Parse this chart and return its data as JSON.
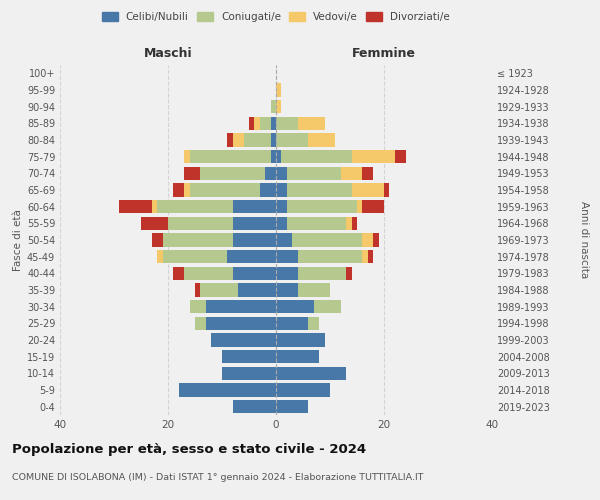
{
  "age_groups": [
    "0-4",
    "5-9",
    "10-14",
    "15-19",
    "20-24",
    "25-29",
    "30-34",
    "35-39",
    "40-44",
    "45-49",
    "50-54",
    "55-59",
    "60-64",
    "65-69",
    "70-74",
    "75-79",
    "80-84",
    "85-89",
    "90-94",
    "95-99",
    "100+"
  ],
  "birth_years": [
    "2019-2023",
    "2014-2018",
    "2009-2013",
    "2004-2008",
    "1999-2003",
    "1994-1998",
    "1989-1993",
    "1984-1988",
    "1979-1983",
    "1974-1978",
    "1969-1973",
    "1964-1968",
    "1959-1963",
    "1954-1958",
    "1949-1953",
    "1944-1948",
    "1939-1943",
    "1934-1938",
    "1929-1933",
    "1924-1928",
    "≤ 1923"
  ],
  "maschi": {
    "celibi": [
      8,
      18,
      10,
      10,
      12,
      13,
      13,
      7,
      8,
      9,
      8,
      8,
      8,
      3,
      2,
      1,
      1,
      1,
      0,
      0,
      0
    ],
    "coniugati": [
      0,
      0,
      0,
      0,
      0,
      2,
      3,
      7,
      9,
      12,
      13,
      12,
      14,
      13,
      12,
      15,
      5,
      2,
      1,
      0,
      0
    ],
    "vedovi": [
      0,
      0,
      0,
      0,
      0,
      0,
      0,
      0,
      0,
      1,
      0,
      0,
      1,
      1,
      0,
      1,
      2,
      1,
      0,
      0,
      0
    ],
    "divorziati": [
      0,
      0,
      0,
      0,
      0,
      0,
      0,
      1,
      2,
      0,
      2,
      5,
      6,
      2,
      3,
      0,
      1,
      1,
      0,
      0,
      0
    ]
  },
  "femmine": {
    "nubili": [
      6,
      10,
      13,
      8,
      9,
      6,
      7,
      4,
      4,
      4,
      3,
      2,
      2,
      2,
      2,
      1,
      0,
      0,
      0,
      0,
      0
    ],
    "coniugate": [
      0,
      0,
      0,
      0,
      0,
      2,
      5,
      6,
      9,
      12,
      13,
      11,
      13,
      12,
      10,
      13,
      6,
      4,
      0,
      0,
      0
    ],
    "vedove": [
      0,
      0,
      0,
      0,
      0,
      0,
      0,
      0,
      0,
      1,
      2,
      1,
      1,
      6,
      4,
      8,
      5,
      5,
      1,
      1,
      0
    ],
    "divorziate": [
      0,
      0,
      0,
      0,
      0,
      0,
      0,
      0,
      1,
      1,
      1,
      1,
      4,
      1,
      2,
      2,
      0,
      0,
      0,
      0,
      0
    ]
  },
  "colors": {
    "celibi": "#4878a8",
    "coniugati": "#b5c98e",
    "vedovi": "#f5c96a",
    "divorziati": "#c0332a"
  },
  "xlim": 40,
  "title": "Popolazione per età, sesso e stato civile - 2024",
  "subtitle": "COMUNE DI ISOLABONA (IM) - Dati ISTAT 1° gennaio 2024 - Elaborazione TUTTITALIA.IT",
  "ylabel_left": "Fasce di età",
  "ylabel_right": "Anni di nascita",
  "xlabel_left": "Maschi",
  "xlabel_right": "Femmine",
  "legend_labels": [
    "Celibi/Nubili",
    "Coniugati/e",
    "Vedovi/e",
    "Divorziati/e"
  ],
  "bg_color": "#f0f0f0"
}
